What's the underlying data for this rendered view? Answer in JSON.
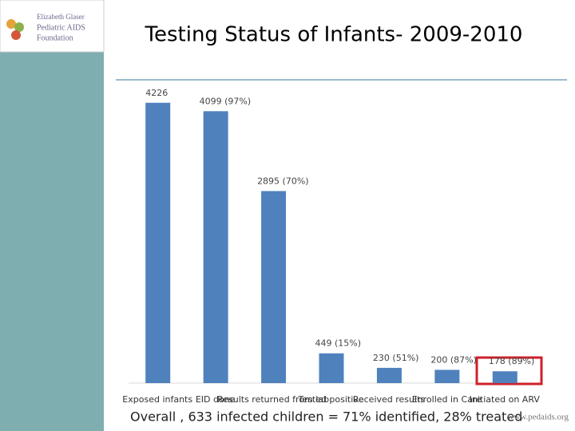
{
  "chart_data": {
    "type": "bar",
    "title": "Testing Status of Infants- 2009-2010",
    "categories": [
      "Exposed infants",
      "EID done",
      "Results returned from lab",
      "Tested positive",
      "Received results",
      "Enrolled in Care",
      "Initiated on ARV"
    ],
    "values": [
      4226,
      4099,
      2895,
      449,
      230,
      200,
      178
    ],
    "value_labels": [
      "4226",
      "4099 (97%)",
      "2895 (70%)",
      "449 (15%)",
      "230 (51%)",
      "200 (87%)",
      "178 (89%)"
    ],
    "color": "#4f81bd",
    "ylim": [
      0,
      4500
    ],
    "grid": false
  },
  "logo": [
    "Elizabeth Glaser",
    "Pediatric AIDS",
    "Foundation"
  ],
  "footer": "Overall , 633 infected children = 71% identified, 28% treated",
  "website": "www.pedaids.org"
}
